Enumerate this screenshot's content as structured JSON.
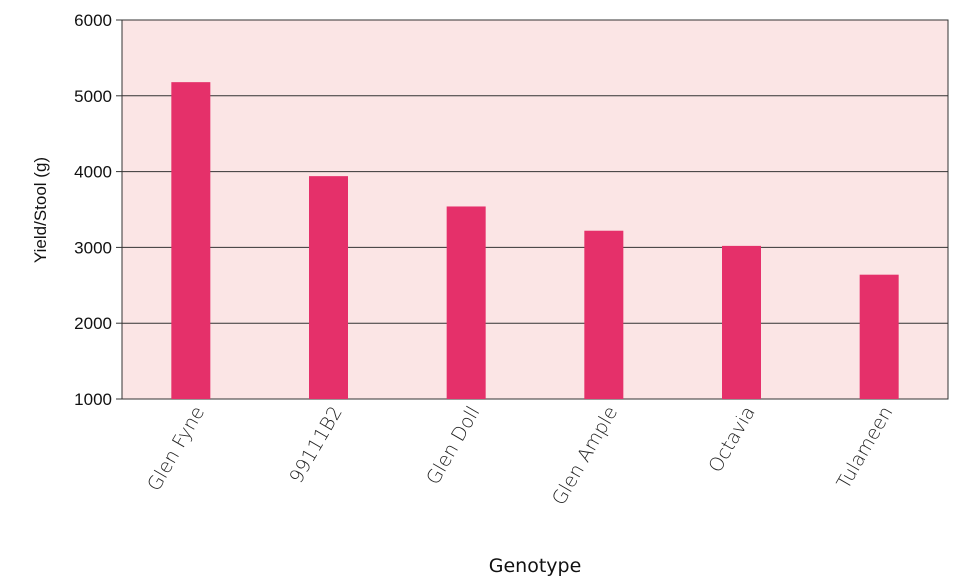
{
  "chart_data": {
    "type": "bar",
    "categories": [
      "Glen Fyne",
      "99111B2",
      "Glen Doll",
      "Glen Ample",
      "Octavia",
      "Tulameen"
    ],
    "values": [
      5180,
      3940,
      3540,
      3220,
      3020,
      2640
    ],
    "xlabel": "Genotype",
    "ylabel": "Yield/Stool (g)",
    "ylim": [
      1000,
      6000
    ],
    "yticks": [
      "1000",
      "2000",
      "3000",
      "4000",
      "5000",
      "6000"
    ],
    "grid": true,
    "colors": {
      "bar": "#e5306a",
      "plot_background": "#fbe5e5",
      "gridline": "#333333"
    }
  }
}
